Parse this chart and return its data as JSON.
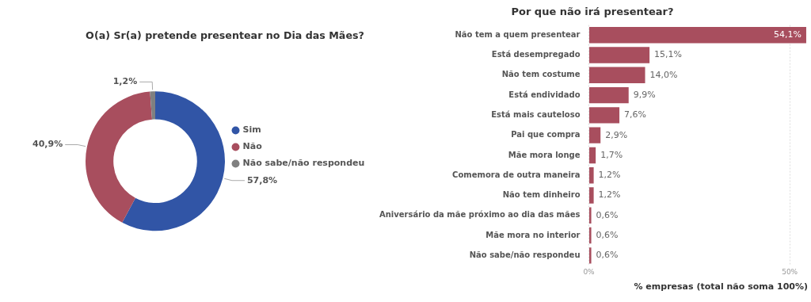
{
  "chart_data": [
    {
      "type": "donut",
      "title": "O(a) Sr(a) pretende presentear no Dia das Mães?",
      "categories": [
        "Sim",
        "Não",
        "Não sabe/não respondeu"
      ],
      "values": [
        57.8,
        40.9,
        1.2
      ],
      "colors": [
        "#3155a6",
        "#a84e5e",
        "#808080"
      ],
      "value_labels": [
        "57,8%",
        "40,9%",
        "1,2%"
      ],
      "legend": "right"
    },
    {
      "type": "bar",
      "orientation": "horizontal",
      "title": "Por que não irá presentear?",
      "xlabel": "% empresas (total não soma 100%)",
      "categories": [
        "Não tem a quem presentear",
        "Está desempregado",
        "Não tem costume",
        "Está endividado",
        "Está mais cauteloso",
        "Pai que compra",
        "Mãe mora longe",
        "Comemora de outra maneira",
        "Não tem dinheiro",
        "Aniversário da mãe próximo ao dia das mães",
        "Mãe mora no interior",
        "Não sabe/não respondeu"
      ],
      "values": [
        54.1,
        15.1,
        14.0,
        9.9,
        7.6,
        2.9,
        1.7,
        1.2,
        1.2,
        0.6,
        0.6,
        0.6
      ],
      "value_labels": [
        "54,1%",
        "15,1%",
        "14,0%",
        "9,9%",
        "7,6%",
        "2,9%",
        "1,7%",
        "1,2%",
        "1,2%",
        "0,6%",
        "0,6%",
        "0,6%"
      ],
      "color": "#a84e5e",
      "xlim": [
        0,
        54.5
      ],
      "xticks": [
        {
          "value": 0,
          "label": "0%"
        },
        {
          "value": 50,
          "label": "50%"
        }
      ],
      "grid": "x",
      "legend": false
    }
  ]
}
